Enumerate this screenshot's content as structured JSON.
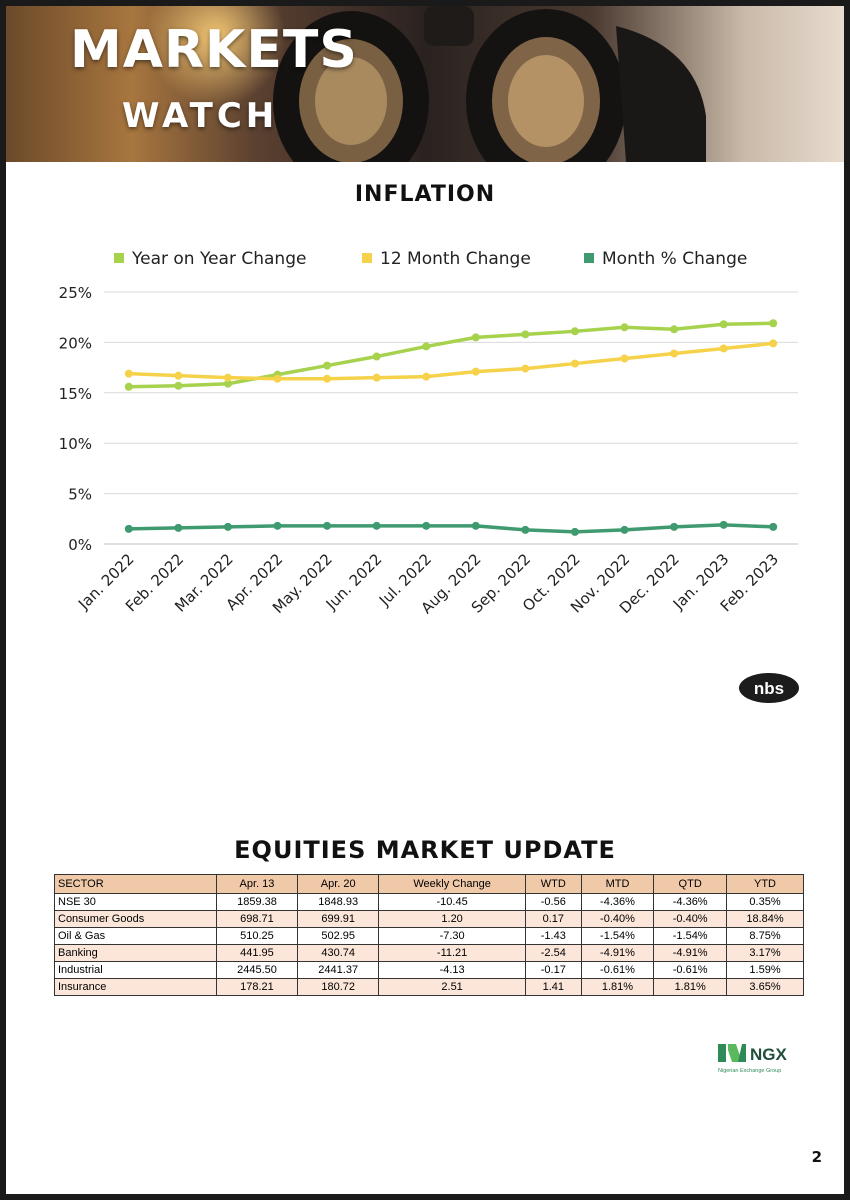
{
  "banner": {
    "line1": "MARKETS",
    "line2": "WATCH"
  },
  "inflation_title": "INFLATION",
  "chart_data": {
    "type": "line",
    "title": "INFLATION",
    "categories": [
      "Jan. 2022",
      "Feb. 2022",
      "Mar. 2022",
      "Apr. 2022",
      "May. 2022",
      "Jun. 2022",
      "Jul. 2022",
      "Aug. 2022",
      "Sep. 2022",
      "Oct. 2022",
      "Nov. 2022",
      "Dec. 2022",
      "Jan. 2023",
      "Feb. 2023"
    ],
    "y_ticks": [
      "0%",
      "5%",
      "10%",
      "15%",
      "20%",
      "25%"
    ],
    "ylim": [
      0,
      25
    ],
    "grid": true,
    "legend_position": "top",
    "series": [
      {
        "name": "Year on Year Change",
        "color": "#a6d24d",
        "values": [
          15.6,
          15.7,
          15.9,
          16.8,
          17.7,
          18.6,
          19.6,
          20.5,
          20.8,
          21.1,
          21.5,
          21.3,
          21.8,
          21.9
        ]
      },
      {
        "name": "12 Month Change",
        "color": "#f5d24a",
        "values": [
          16.9,
          16.7,
          16.5,
          16.4,
          16.4,
          16.5,
          16.6,
          17.1,
          17.4,
          17.9,
          18.4,
          18.9,
          19.4,
          19.9
        ]
      },
      {
        "name": "Month % Change",
        "color": "#3f9a70",
        "values": [
          1.5,
          1.6,
          1.7,
          1.8,
          1.8,
          1.8,
          1.8,
          1.8,
          1.4,
          1.2,
          1.4,
          1.7,
          1.9,
          1.7
        ]
      }
    ]
  },
  "nbs_logo": {
    "text": "nbs"
  },
  "equities": {
    "title": "EQUITIES MARKET UPDATE",
    "headers": [
      "SECTOR",
      "Apr. 13",
      "Apr. 20",
      "Weekly Change",
      "WTD",
      "MTD",
      "QTD",
      "YTD"
    ],
    "rows": [
      [
        "NSE 30",
        "1859.38",
        "1848.93",
        "-10.45",
        "-0.56",
        "-4.36%",
        "-4.36%",
        "0.35%"
      ],
      [
        "Consumer Goods",
        "698.71",
        "699.91",
        "1.20",
        "0.17",
        "-0.40%",
        "-0.40%",
        "18.84%"
      ],
      [
        "Oil & Gas",
        "510.25",
        "502.95",
        "-7.30",
        "-1.43",
        "-1.54%",
        "-1.54%",
        "8.75%"
      ],
      [
        "Banking",
        "441.95",
        "430.74",
        "-11.21",
        "-2.54",
        "-4.91%",
        "-4.91%",
        "3.17%"
      ],
      [
        "Industrial",
        "2445.50",
        "2441.37",
        "-4.13",
        "-0.17",
        "-0.61%",
        "-0.61%",
        "1.59%"
      ],
      [
        "Insurance",
        "178.21",
        "180.72",
        "2.51",
        "1.41",
        "1.81%",
        "1.81%",
        "3.65%"
      ]
    ]
  },
  "ngx_logo": {
    "name": "NGX",
    "subtitle": "Nigerian Exchange Group"
  },
  "page_number": "2"
}
